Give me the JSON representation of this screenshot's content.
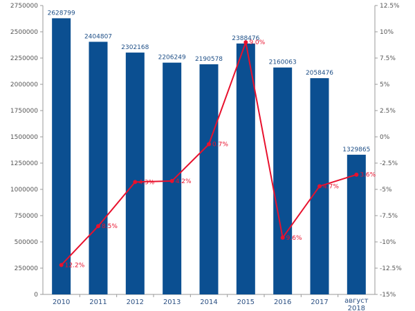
{
  "chart_data": {
    "type": "bar",
    "categories": [
      "2010",
      "2011",
      "2012",
      "2013",
      "2014",
      "2015",
      "2016",
      "2017",
      "август 2018"
    ],
    "series": [
      {
        "type": "bar",
        "axis": "left",
        "values": [
          2628799,
          2404807,
          2302168,
          2206249,
          2190578,
          2388476,
          2160063,
          2058476,
          1329865
        ],
        "labels": [
          "2628799",
          "2404807",
          "2302168",
          "2206249",
          "2190578",
          "2388476",
          "2160063",
          "2058476",
          "1329865"
        ]
      },
      {
        "type": "line",
        "axis": "right",
        "values": [
          -12.2,
          -8.5,
          -4.3,
          -4.2,
          -0.7,
          9.0,
          -9.6,
          -4.7,
          -3.6
        ],
        "labels": [
          "12.2%",
          "8.5%",
          "4.3%",
          "4.2%",
          "0.7%",
          "9.0%",
          "9.6%",
          "4.7%",
          "3.6%"
        ]
      }
    ],
    "y_left": {
      "range": [
        0,
        2750000
      ],
      "ticks": [
        0,
        250000,
        500000,
        750000,
        1000000,
        1250000,
        1500000,
        1750000,
        2000000,
        2250000,
        2500000,
        2750000
      ],
      "tick_labels": [
        "0",
        "250000",
        "500000",
        "750000",
        "1000000",
        "1250000",
        "1500000",
        "1750000",
        "2000000",
        "2250000",
        "2500000",
        "2750000"
      ]
    },
    "y_right": {
      "range": [
        -15,
        12.5
      ],
      "ticks": [
        -15,
        -12.5,
        -10,
        -7.5,
        -5,
        -2.5,
        0,
        2.5,
        5,
        7.5,
        10,
        12.5
      ],
      "tick_labels": [
        "-15%",
        "-12.5%",
        "-10%",
        "-7.5%",
        "-5%",
        "-2.5%",
        "0%",
        "2.5%",
        "5%",
        "7.5%",
        "10%",
        "12.5%"
      ]
    },
    "grid": false,
    "colors": {
      "bar": "#0b4f91",
      "line": "#e8112d",
      "axis": "#999999"
    }
  }
}
